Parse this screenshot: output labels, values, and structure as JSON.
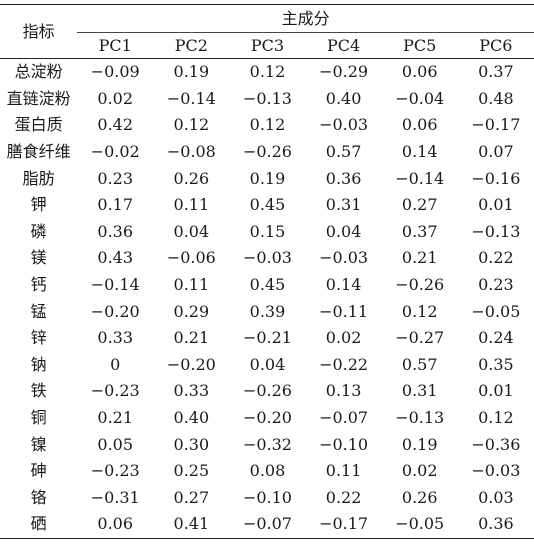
{
  "table": {
    "header_indicator": "指标",
    "header_group": "主成分",
    "columns": [
      "PC1",
      "PC2",
      "PC3",
      "PC4",
      "PC5",
      "PC6"
    ],
    "rows": [
      {
        "label": "总淀粉",
        "values": [
          "−0.09",
          "0.19",
          "0.12",
          "−0.29",
          "0.06",
          "0.37"
        ]
      },
      {
        "label": "直链淀粉",
        "values": [
          "0.02",
          "−0.14",
          "−0.13",
          "0.40",
          "−0.04",
          "0.48"
        ]
      },
      {
        "label": "蛋白质",
        "values": [
          "0.42",
          "0.12",
          "0.12",
          "−0.03",
          "0.06",
          "−0.17"
        ]
      },
      {
        "label": "膳食纤维",
        "values": [
          "−0.02",
          "−0.08",
          "−0.26",
          "0.57",
          "0.14",
          "0.07"
        ]
      },
      {
        "label": "脂肪",
        "values": [
          "0.23",
          "0.26",
          "0.19",
          "0.36",
          "−0.14",
          "−0.16"
        ]
      },
      {
        "label": "钾",
        "values": [
          "0.17",
          "0.11",
          "0.45",
          "0.31",
          "0.27",
          "0.01"
        ]
      },
      {
        "label": "磷",
        "values": [
          "0.36",
          "0.04",
          "0.15",
          "0.04",
          "0.37",
          "−0.13"
        ]
      },
      {
        "label": "镁",
        "values": [
          "0.43",
          "−0.06",
          "−0.03",
          "−0.03",
          "0.21",
          "0.22"
        ]
      },
      {
        "label": "钙",
        "values": [
          "−0.14",
          "0.11",
          "0.45",
          "0.14",
          "−0.26",
          "0.23"
        ]
      },
      {
        "label": "锰",
        "values": [
          "−0.20",
          "0.29",
          "0.39",
          "−0.11",
          "0.12",
          "−0.05"
        ]
      },
      {
        "label": "锌",
        "values": [
          "0.33",
          "0.21",
          "−0.21",
          "0.02",
          "−0.27",
          "0.24"
        ]
      },
      {
        "label": "钠",
        "values": [
          "0",
          "−0.20",
          "0.04",
          "−0.22",
          "0.57",
          "0.35"
        ]
      },
      {
        "label": "铁",
        "values": [
          "−0.23",
          "0.33",
          "−0.26",
          "0.13",
          "0.31",
          "0.01"
        ]
      },
      {
        "label": "铜",
        "values": [
          "0.21",
          "0.40",
          "−0.20",
          "−0.07",
          "−0.13",
          "0.12"
        ]
      },
      {
        "label": "镍",
        "values": [
          "0.05",
          "0.30",
          "−0.32",
          "−0.10",
          "0.19",
          "−0.36"
        ]
      },
      {
        "label": "砷",
        "values": [
          "−0.23",
          "0.25",
          "0.08",
          "0.11",
          "0.02",
          "−0.03"
        ]
      },
      {
        "label": "铬",
        "values": [
          "−0.31",
          "0.27",
          "−0.10",
          "0.22",
          "0.26",
          "0.03"
        ]
      },
      {
        "label": "硒",
        "values": [
          "0.06",
          "0.41",
          "−0.07",
          "−0.17",
          "−0.05",
          "0.36"
        ]
      }
    ]
  }
}
